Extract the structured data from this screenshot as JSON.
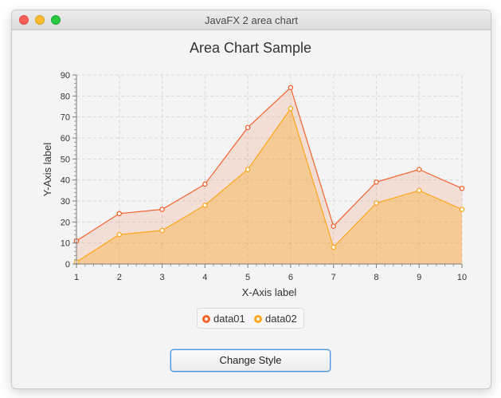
{
  "window": {
    "title": "JavaFX 2 area chart"
  },
  "button": {
    "label": "Change Style"
  },
  "colors": {
    "data01": "#f3622d",
    "data02": "#fba71b"
  },
  "chart_data": {
    "type": "area",
    "title": "Area Chart Sample",
    "xlabel": "X-Axis label",
    "ylabel": "Y-Axis label",
    "x": [
      1,
      2,
      3,
      4,
      5,
      6,
      7,
      8,
      9,
      10
    ],
    "xlim": [
      1,
      10
    ],
    "ylim": [
      0,
      90
    ],
    "xticks": [
      "1",
      "2",
      "3",
      "4",
      "5",
      "6",
      "7",
      "8",
      "9",
      "10"
    ],
    "yticks": [
      "0",
      "10",
      "20",
      "30",
      "40",
      "50",
      "60",
      "70",
      "80",
      "90"
    ],
    "grid": true,
    "legend_position": "bottom",
    "series": [
      {
        "name": "data01",
        "values": [
          11,
          24,
          26,
          38,
          65,
          84,
          18,
          39,
          45,
          36
        ]
      },
      {
        "name": "data02",
        "values": [
          1,
          14,
          16,
          28,
          45,
          74,
          8,
          29,
          35,
          26
        ]
      }
    ]
  }
}
